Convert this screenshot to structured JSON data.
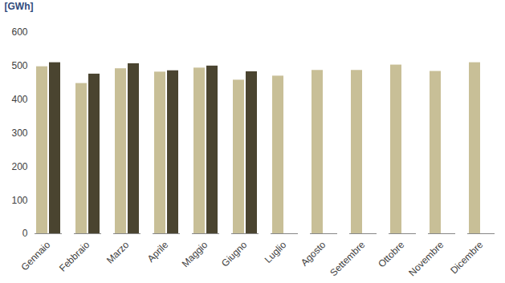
{
  "chart_data": {
    "type": "bar",
    "y_label": "[GWh]",
    "categories": [
      "Gennaio",
      "Febbraio",
      "Marzo",
      "Aprile",
      "Maggio",
      "Giugno",
      "Luglio",
      "Agosto",
      "Settembre",
      "Ottobre",
      "Novembre",
      "Dicembre"
    ],
    "series": [
      {
        "color": "#c8bf97",
        "values": [
          498,
          448,
          492,
          482,
          494,
          458,
          470,
          487,
          487,
          503,
          484,
          510
        ]
      },
      {
        "color": "#4a4430",
        "values": [
          510,
          476,
          507,
          486,
          500,
          483,
          null,
          null,
          null,
          null,
          null,
          null
        ]
      }
    ],
    "ylim": [
      0,
      600
    ],
    "yticks": [
      0,
      100,
      200,
      300,
      400,
      500,
      600
    ],
    "grid": false
  }
}
